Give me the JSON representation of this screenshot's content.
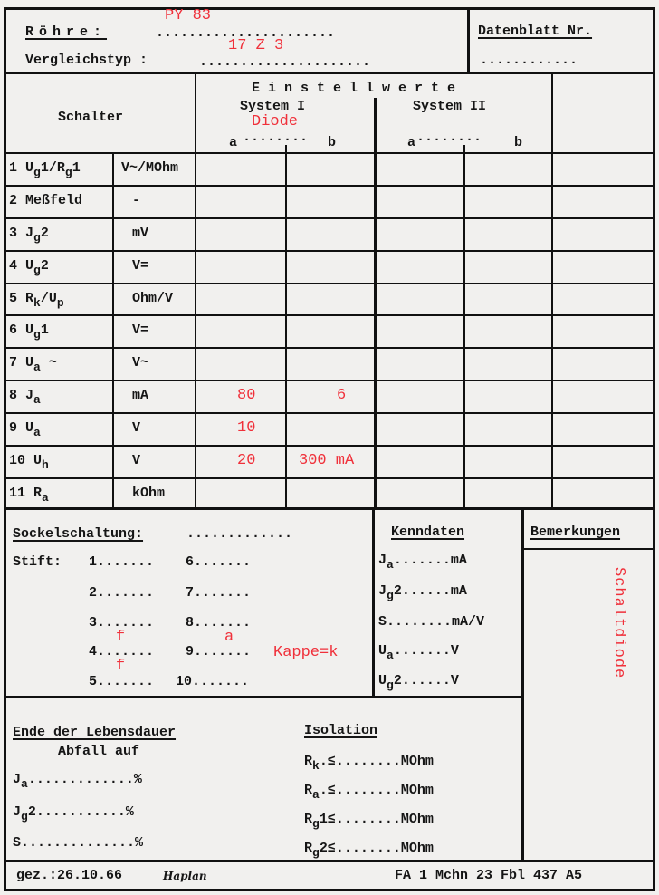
{
  "header": {
    "tube_label": "Röhre:",
    "tube_dots": "......................",
    "tube_value": "PY 83",
    "equiv_label": "Vergleichstyp :",
    "equiv_dots": ".....................",
    "equiv_value": "17 Z 3",
    "datasheet_label": "Datenblatt Nr.",
    "datasheet_dots": "............"
  },
  "settings": {
    "switch_heading": "Schalter",
    "heading": "E i n s t e l l w e r t e",
    "system1": "System I",
    "system1_note": "Diode",
    "system2": "System II",
    "dots": "........",
    "col_a": "a",
    "col_b": "b",
    "rows": [
      {
        "num": "1",
        "label": [
          [
            "U"
          ],
          [
            "g",
            1
          ],
          [
            "1/R"
          ],
          [
            "g",
            1
          ],
          [
            "1"
          ]
        ],
        "unit": "V~/MOhm",
        "a": "",
        "b": ""
      },
      {
        "num": "2",
        "label": [
          [
            "Meßfeld"
          ]
        ],
        "unit": "-",
        "a": "",
        "b": ""
      },
      {
        "num": "3",
        "label": [
          [
            "J"
          ],
          [
            "g",
            1
          ],
          [
            "2"
          ]
        ],
        "unit": "mV",
        "a": "",
        "b": ""
      },
      {
        "num": "4",
        "label": [
          [
            "U"
          ],
          [
            "g",
            1
          ],
          [
            "2"
          ]
        ],
        "unit": "V=",
        "a": "",
        "b": ""
      },
      {
        "num": "5",
        "label": [
          [
            "R"
          ],
          [
            "k",
            1
          ],
          [
            "/U"
          ],
          [
            "p",
            1
          ]
        ],
        "unit": "Ohm/V",
        "a": "",
        "b": ""
      },
      {
        "num": "6",
        "label": [
          [
            "U"
          ],
          [
            "g",
            1
          ],
          [
            "1"
          ]
        ],
        "unit": "V=",
        "a": "",
        "b": ""
      },
      {
        "num": "7",
        "label": [
          [
            "U"
          ],
          [
            "a",
            1
          ],
          [
            " ~"
          ]
        ],
        "unit": "V~",
        "a": "",
        "b": ""
      },
      {
        "num": "8",
        "label": [
          [
            "J"
          ],
          [
            "a",
            1
          ]
        ],
        "unit": "mA",
        "a": "80",
        "b": "6"
      },
      {
        "num": "9",
        "label": [
          [
            "U"
          ],
          [
            "a",
            1
          ]
        ],
        "unit": "V",
        "a": "10",
        "b": ""
      },
      {
        "num": "10",
        "label": [
          [
            "U"
          ],
          [
            "h",
            1
          ]
        ],
        "unit": "V",
        "a": "20",
        "b": "300 mA"
      },
      {
        "num": "11",
        "label": [
          [
            "R"
          ],
          [
            "a",
            1
          ]
        ],
        "unit": "kOhm",
        "a": "",
        "b": ""
      }
    ]
  },
  "socket": {
    "title": "Sockelschaltung:",
    "title_dots": ".............",
    "pin_label": "Stift:",
    "pins_left": [
      "1.......",
      "2.......",
      "3.......",
      "4.......",
      "5......."
    ],
    "pins_right": [
      "6.......",
      "7.......",
      "8.......",
      "9.......",
      "10......."
    ],
    "notes": {
      "pin4_upper": "f",
      "pin4_lower": "f",
      "pin8": "a",
      "pin9": "Kappe=k"
    }
  },
  "characteristics": {
    "title": "Kenndaten",
    "rows": [
      {
        "label": [
          [
            "J"
          ],
          [
            "a",
            1
          ]
        ],
        "dots": ".......",
        "unit": "mA"
      },
      {
        "label": [
          [
            "J"
          ],
          [
            "g",
            1
          ],
          [
            "2"
          ]
        ],
        "dots": "......",
        "unit": "mA"
      },
      {
        "label": [
          [
            "S"
          ]
        ],
        "dots": "........",
        "unit": "mA/V"
      },
      {
        "label": [
          [
            "U"
          ],
          [
            "a",
            1
          ]
        ],
        "dots": ".......",
        "unit": "V"
      },
      {
        "label": [
          [
            "U"
          ],
          [
            "g",
            1
          ],
          [
            "2"
          ]
        ],
        "dots": "......",
        "unit": "V"
      }
    ]
  },
  "remarks": {
    "title": "Bemerkungen",
    "value": "Schaltdiode"
  },
  "lifetime": {
    "title": "Ende der Lebensdauer",
    "subtitle": "Abfall auf",
    "rows": [
      {
        "label": [
          [
            "J"
          ],
          [
            "a",
            1
          ]
        ],
        "dots": ".............",
        "unit": "%"
      },
      {
        "label": [
          [
            "J"
          ],
          [
            "g",
            1
          ],
          [
            "2"
          ]
        ],
        "dots": "...........",
        "unit": "%"
      },
      {
        "label": [
          [
            "S"
          ]
        ],
        "dots": "..............",
        "unit": "%"
      }
    ]
  },
  "isolation": {
    "title": "Isolation",
    "rows": [
      {
        "label": [
          [
            "R"
          ],
          [
            "k",
            1
          ]
        ],
        "dots": ".≤........",
        "unit": "MOhm"
      },
      {
        "label": [
          [
            "R"
          ],
          [
            "a",
            1
          ]
        ],
        "dots": ".≤........",
        "unit": "MOhm"
      },
      {
        "label": [
          [
            "R"
          ],
          [
            "g",
            1
          ],
          [
            "1"
          ]
        ],
        "dots": "≤........",
        "unit": "MOhm"
      },
      {
        "label": [
          [
            "R"
          ],
          [
            "g",
            1
          ],
          [
            "2"
          ]
        ],
        "dots": "≤........",
        "unit": "MOhm"
      }
    ]
  },
  "footer": {
    "signed": "gez.:26.10.66",
    "signature": "Haplan",
    "reference": "FA 1 Mchn 23 Fbl 437 A5"
  },
  "colors": {
    "ink": "#151515",
    "handwritten_red": "#f0303a",
    "paper": "#f1f0ee"
  }
}
